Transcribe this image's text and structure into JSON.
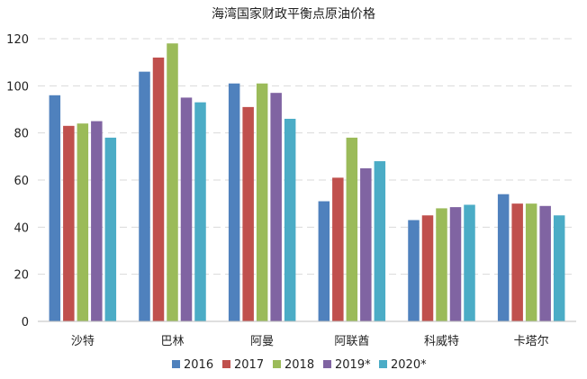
{
  "chart_data": {
    "type": "bar",
    "title": "海湾国家财政平衡点原油价格",
    "categories": [
      "沙特",
      "巴林",
      "阿曼",
      "阿联酋",
      "科威特",
      "卡塔尔"
    ],
    "series": [
      {
        "name": "2016",
        "color": "#4f81bd",
        "values": [
          96,
          106,
          101,
          51,
          43,
          54
        ]
      },
      {
        "name": "2017",
        "color": "#c0504d",
        "values": [
          83,
          112,
          91,
          61,
          45,
          50
        ]
      },
      {
        "name": "2018",
        "color": "#9bbb59",
        "values": [
          84,
          118,
          101,
          78,
          48,
          50
        ]
      },
      {
        "name": "2019*",
        "color": "#8064a2",
        "values": [
          85,
          95,
          97,
          65,
          48.5,
          49
        ]
      },
      {
        "name": "2020*",
        "color": "#4bacc6",
        "values": [
          78,
          93,
          86,
          68,
          49.5,
          45
        ]
      }
    ],
    "ylim": [
      0,
      120
    ],
    "yticks": [
      0,
      20,
      40,
      60,
      80,
      100,
      120
    ],
    "xlabel": "",
    "ylabel": "",
    "grid": true,
    "legend": "bottom"
  }
}
